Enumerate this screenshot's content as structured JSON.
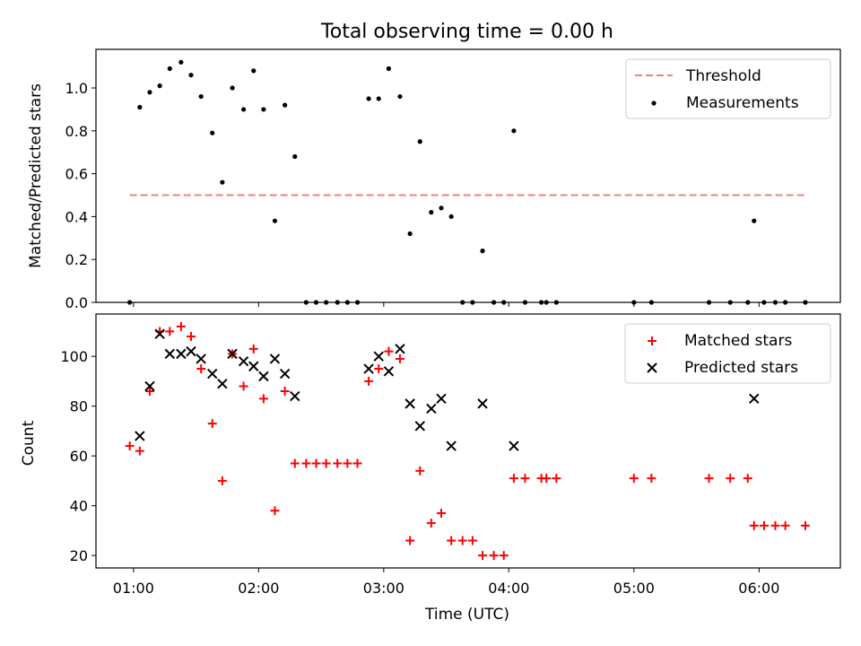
{
  "title": "Total observing time = 0.00 h",
  "colors": {
    "threshold": "#f08080",
    "measurement": "#000000",
    "matched": "#ff0000",
    "predicted": "#000000"
  },
  "chart_data": [
    {
      "type": "scatter",
      "ylabel": "Matched/Predicted stars",
      "xlim": [
        0.7,
        6.65
      ],
      "ylim": [
        0,
        1.18
      ],
      "yticks": [
        0.0,
        0.2,
        0.4,
        0.6,
        0.8,
        1.0
      ],
      "ytick_labels": [
        "0.0",
        "0.2",
        "0.4",
        "0.6",
        "0.8",
        "1.0"
      ],
      "legend": {
        "position": "top-right",
        "entries": [
          "Threshold",
          "Measurements"
        ]
      },
      "threshold": {
        "name": "Threshold",
        "value": 0.5,
        "x_range": [
          0.97,
          6.37
        ]
      },
      "series": [
        {
          "name": "Measurements",
          "x": [
            0.97,
            1.05,
            1.13,
            1.21,
            1.29,
            1.38,
            1.46,
            1.54,
            1.63,
            1.71,
            1.79,
            1.88,
            1.96,
            2.04,
            2.13,
            2.21,
            2.29,
            2.38,
            2.46,
            2.54,
            2.63,
            2.71,
            2.79,
            2.88,
            2.96,
            3.04,
            3.13,
            3.21,
            3.29,
            3.38,
            3.46,
            3.54,
            3.63,
            3.71,
            3.79,
            3.88,
            3.96,
            4.04,
            4.13,
            4.26,
            4.3,
            4.38,
            5.0,
            5.14,
            5.6,
            5.77,
            5.91,
            5.96,
            6.04,
            6.13,
            6.21,
            6.37
          ],
          "y": [
            0.0,
            0.91,
            0.98,
            1.01,
            1.09,
            1.12,
            1.06,
            0.96,
            0.79,
            0.56,
            1.0,
            0.9,
            1.08,
            0.9,
            0.38,
            0.92,
            0.68,
            0.0,
            0.0,
            0.0,
            0.0,
            0.0,
            0.0,
            0.95,
            0.95,
            1.09,
            0.96,
            0.32,
            0.75,
            0.42,
            0.44,
            0.4,
            0.0,
            0.0,
            0.24,
            0.0,
            0.0,
            0.8,
            0.0,
            0.0,
            0.0,
            0.0,
            0.0,
            0.0,
            0.0,
            0.0,
            0.0,
            0.38,
            0.0,
            0.0,
            0.0,
            0.0
          ]
        }
      ]
    },
    {
      "type": "scatter",
      "xlabel": "Time (UTC)",
      "ylabel": "Count",
      "xlim": [
        0.7,
        6.65
      ],
      "ylim": [
        15,
        117
      ],
      "xticks": [
        1,
        2,
        3,
        4,
        5,
        6
      ],
      "xtick_labels": [
        "01:00",
        "02:00",
        "03:00",
        "04:00",
        "05:00",
        "06:00"
      ],
      "yticks": [
        20,
        40,
        60,
        80,
        100
      ],
      "ytick_labels": [
        "20",
        "40",
        "60",
        "80",
        "100"
      ],
      "legend": {
        "position": "top-right",
        "entries": [
          "Matched stars",
          "Predicted stars"
        ]
      },
      "series": [
        {
          "name": "Matched stars",
          "marker": "plus",
          "x": [
            0.97,
            1.05,
            1.13,
            1.21,
            1.29,
            1.38,
            1.46,
            1.54,
            1.63,
            1.71,
            1.79,
            1.88,
            1.96,
            2.04,
            2.13,
            2.21,
            2.29,
            2.38,
            2.46,
            2.54,
            2.63,
            2.71,
            2.79,
            2.88,
            2.96,
            3.04,
            3.13,
            3.21,
            3.29,
            3.38,
            3.46,
            3.54,
            3.63,
            3.71,
            3.79,
            3.88,
            3.96,
            4.04,
            4.13,
            4.26,
            4.3,
            4.38,
            5.0,
            5.14,
            5.6,
            5.77,
            5.91,
            5.96,
            6.04,
            6.13,
            6.21,
            6.37
          ],
          "y": [
            64,
            62,
            86,
            110,
            110,
            112,
            108,
            95,
            73,
            50,
            101,
            88,
            103,
            83,
            38,
            86,
            57,
            57,
            57,
            57,
            57,
            57,
            57,
            90,
            95,
            102,
            99,
            26,
            54,
            33,
            37,
            26,
            26,
            26,
            20,
            20,
            20,
            51,
            51,
            51,
            51,
            51,
            51,
            51,
            51,
            51,
            51,
            32,
            32,
            32,
            32,
            32
          ]
        },
        {
          "name": "Predicted stars",
          "marker": "x",
          "x": [
            1.05,
            1.13,
            1.21,
            1.29,
            1.38,
            1.46,
            1.54,
            1.63,
            1.71,
            1.79,
            1.88,
            1.96,
            2.04,
            2.13,
            2.21,
            2.29,
            2.88,
            2.96,
            3.04,
            3.13,
            3.21,
            3.29,
            3.38,
            3.46,
            3.54,
            3.79,
            4.04,
            5.96
          ],
          "y": [
            68,
            88,
            109,
            101,
            101,
            102,
            99,
            93,
            89,
            101,
            98,
            96,
            92,
            99,
            93,
            84,
            95,
            100,
            94,
            103,
            81,
            72,
            79,
            83,
            64,
            81,
            64,
            83
          ]
        }
      ]
    }
  ]
}
